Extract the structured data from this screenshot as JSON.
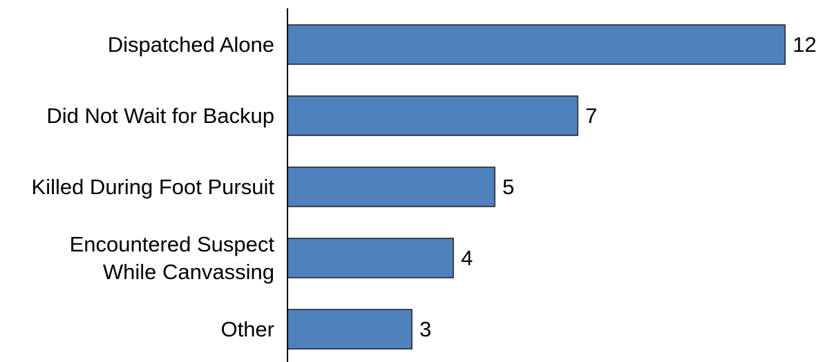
{
  "chart_data": {
    "type": "bar",
    "orientation": "horizontal",
    "title": "",
    "xlabel": "",
    "ylabel": "",
    "categories": [
      [
        "Dispatched Alone"
      ],
      [
        "Did Not Wait for Backup"
      ],
      [
        "Killed During Foot Pursuit"
      ],
      [
        "Encountered Suspect",
        "While Canvassing"
      ],
      [
        "Other"
      ]
    ],
    "values": [
      12,
      7,
      5,
      4,
      3
    ],
    "xlim": [
      0,
      12
    ],
    "grid": false,
    "legend": "none",
    "bar_color": "#4f81bd",
    "bar_edge_color": "#1f1f1f",
    "axis_color": "#000000"
  }
}
